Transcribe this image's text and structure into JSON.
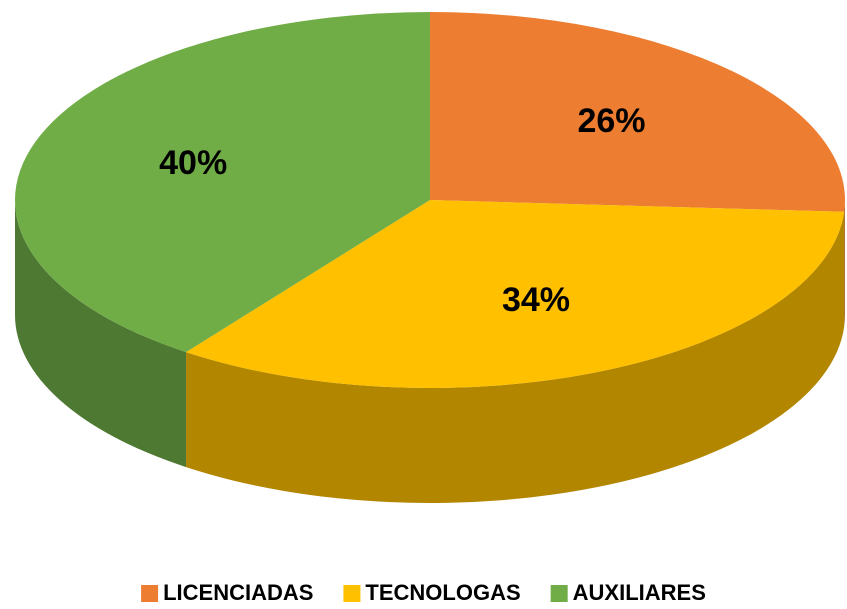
{
  "chart_data": {
    "type": "pie",
    "categories": [
      "LICENCIADAS",
      "TECNOLOGAS",
      "AUXILIARES"
    ],
    "values": [
      26,
      34,
      40
    ],
    "value_labels": [
      "26%",
      "34%",
      "40%"
    ],
    "colors": [
      "#ed7d31",
      "#ffc000",
      "#70ad47"
    ],
    "legend": "bottom"
  }
}
